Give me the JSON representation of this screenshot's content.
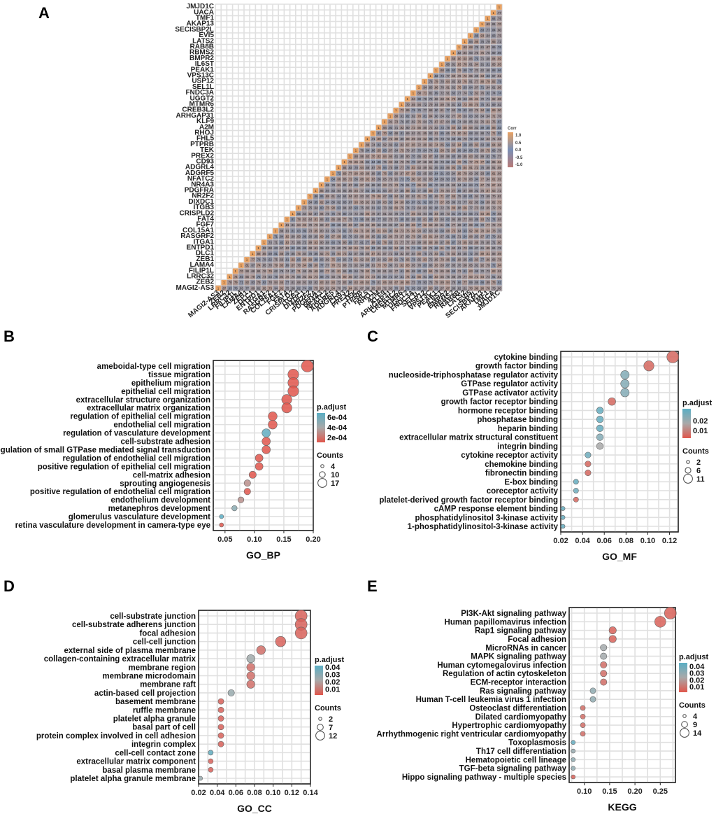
{
  "chart_data": [
    {
      "panel": "A",
      "type": "heatmap",
      "genes": [
        "MAGI2-AS3",
        "ZEB2",
        "LRRC32",
        "FILIP1L",
        "LAMA4",
        "ZEB1",
        "DLC1",
        "ENTPD1",
        "ITGA1",
        "RASGRF2",
        "COL15A1",
        "FGF7",
        "FAT4",
        "CRISPLD2",
        "ITGB3",
        "DIXDC1",
        "NR2F2",
        "PDGFRA",
        "NR4A3",
        "NFATC2",
        "ADGRF5",
        "ADGRL4",
        "CD93",
        "PREX2",
        "TEK",
        "PTPRB",
        "FHL5",
        "RHOJ",
        "A2M",
        "KLF9",
        "ARHGAP31",
        "CREB3L2",
        "MTMR6",
        "UGGT2",
        "FNDC3A",
        "SEL1L",
        "USP12",
        "VPS13C",
        "PEAK1",
        "IL6ST",
        "BMPR2",
        "RBMS2",
        "RAB8B",
        "LATS2",
        "EVI5",
        "SECISBP2L",
        "AKAP13",
        "TMF1",
        "UACA",
        "JMJD1C"
      ],
      "legend_title": "Corr",
      "legend_ticks": [
        "1.0",
        "0.5",
        "0.0",
        "-0.5",
        "-1.0"
      ]
    },
    {
      "panel": "B",
      "type": "scatter",
      "xlabel": "GO_BP",
      "xlim": [
        0.03,
        0.2
      ],
      "xticks": [
        "0.05",
        "0.10",
        "0.15",
        "0.20"
      ],
      "xtick_values": [
        0.05,
        0.1,
        0.15,
        0.2
      ],
      "terms": [
        "ameboidal-type cell migration",
        "tissue migration",
        "epithelium migration",
        "epithelial cell migration",
        "extracellular structure organization",
        "extracellular matrix organization",
        "regulation of epithelial cell migration",
        "endothelial cell migration",
        "regulation of vasculature development",
        "cell-substrate adhesion",
        "regulation of small GTPase mediated signal transduction",
        "regulation of endothelial cell migration",
        "positive regulation of epithelial cell migration",
        "cell-matrix adhesion",
        "sprouting angiogenesis",
        "positive regulation of endothelial cell migration",
        "endothelium development",
        "metanephros development",
        "glomerulus vasculature development",
        "retina vasculature development in camera-type eye"
      ],
      "x": [
        0.19,
        0.166,
        0.166,
        0.166,
        0.155,
        0.155,
        0.131,
        0.131,
        0.12,
        0.12,
        0.12,
        0.108,
        0.108,
        0.097,
        0.088,
        0.088,
        0.077,
        0.066,
        0.044,
        0.044
      ],
      "counts": [
        17,
        15,
        15,
        15,
        14,
        14,
        12,
        12,
        11,
        11,
        11,
        10,
        10,
        9,
        8,
        8,
        7,
        6,
        4,
        4
      ],
      "padj": [
        0.0001,
        0.0001,
        0.0001,
        0.0001,
        0.0001,
        0.0001,
        0.0001,
        0.0001,
        0.00065,
        0.0001,
        0.0001,
        0.0001,
        0.0001,
        0.0001,
        0.0003,
        0.0001,
        0.0003,
        0.0005,
        0.00068,
        0.0001
      ],
      "color_range": [
        0.0001,
        0.00068
      ],
      "color_title": "p.adjust",
      "color_ticks": [
        "6e-04",
        "4e-04",
        "2e-04"
      ],
      "color_tick_values": [
        0.0006,
        0.0004,
        0.0002
      ],
      "size_title": "Counts",
      "size_ticks": [
        "4",
        "10",
        "17"
      ],
      "size_tick_values": [
        4,
        10,
        17
      ]
    },
    {
      "panel": "C",
      "type": "scatter",
      "xlabel": "GO_MF",
      "xlim": [
        0.02,
        0.128
      ],
      "xticks": [
        "0.02",
        "0.04",
        "0.06",
        "0.08",
        "0.10",
        "0.12"
      ],
      "xtick_values": [
        0.02,
        0.04,
        0.06,
        0.08,
        0.1,
        0.12
      ],
      "terms": [
        "cytokine binding",
        "growth factor binding",
        "nucleoside-triphosphatase regulator activity",
        "GTPase regulator activity",
        "GTPase activator activity",
        "growth factor receptor binding",
        "hormone receptor binding",
        "phosphatase binding",
        "heparin binding",
        "extracellular matrix structural constituent",
        "integrin binding",
        "cytokine receptor activity",
        "chemokine binding",
        "fibronectin binding",
        "E-box binding",
        "coreceptor activity",
        "platelet-derived growth factor receptor binding",
        "cAMP response element binding",
        "phosphatidylinositol 3-kinase activity",
        "1-phosphatidylinositol-3-kinase activity"
      ],
      "x": [
        0.123,
        0.101,
        0.079,
        0.079,
        0.079,
        0.067,
        0.056,
        0.056,
        0.056,
        0.056,
        0.056,
        0.045,
        0.045,
        0.045,
        0.034,
        0.034,
        0.034,
        0.022,
        0.022,
        0.022
      ],
      "counts": [
        11,
        9,
        7,
        7,
        7,
        6,
        5,
        5,
        5,
        5,
        5,
        4,
        4,
        4,
        3,
        3,
        3,
        2,
        2,
        2
      ],
      "padj": [
        0.005,
        0.005,
        0.024,
        0.024,
        0.024,
        0.005,
        0.03,
        0.03,
        0.03,
        0.024,
        0.017,
        0.028,
        0.005,
        0.005,
        0.03,
        0.028,
        0.005,
        0.03,
        0.03,
        0.03
      ],
      "color_range": [
        0.002,
        0.032
      ],
      "color_title": "p.adjust",
      "color_ticks": [
        "0.02",
        "0.01"
      ],
      "color_tick_values": [
        0.02,
        0.01
      ],
      "size_title": "Counts",
      "size_ticks": [
        "2",
        "6",
        "11"
      ],
      "size_tick_values": [
        2,
        6,
        11
      ]
    },
    {
      "panel": "D",
      "type": "scatter",
      "xlabel": "GO_CC",
      "xlim": [
        0.02,
        0.14
      ],
      "xticks": [
        "0.02",
        "0.04",
        "0.06",
        "0.08",
        "0.10",
        "0.12",
        "0.14"
      ],
      "xtick_values": [
        0.02,
        0.04,
        0.06,
        0.08,
        0.1,
        0.12,
        0.14
      ],
      "terms": [
        "cell-substrate junction",
        "cell-substrate adherens junction",
        "focal adhesion",
        "cell-cell junction",
        "external side of plasma membrane",
        "collagen-containing extracellular matrix",
        "membrane region",
        "membrane microdomain",
        "membrane raft",
        "actin-based cell projection",
        "basement membrane",
        "ruffle membrane",
        "platelet alpha granule",
        "basal part of cell",
        "protein complex involved in cell adhesion",
        "integrin complex",
        "cell-cell contact zone",
        "extracellular matrix component",
        "basal plasma membrane",
        "platelet alpha granule membrane"
      ],
      "x": [
        0.13,
        0.13,
        0.13,
        0.108,
        0.087,
        0.076,
        0.076,
        0.076,
        0.076,
        0.055,
        0.044,
        0.044,
        0.044,
        0.044,
        0.044,
        0.044,
        0.033,
        0.033,
        0.033,
        0.022
      ],
      "counts": [
        12,
        12,
        12,
        10,
        8,
        7,
        7,
        7,
        7,
        5,
        4,
        4,
        4,
        4,
        4,
        4,
        3,
        3,
        3,
        2
      ],
      "padj": [
        0.005,
        0.005,
        0.005,
        0.005,
        0.008,
        0.024,
        0.008,
        0.008,
        0.008,
        0.026,
        0.005,
        0.005,
        0.005,
        0.005,
        0.005,
        0.005,
        0.04,
        0.005,
        0.005,
        0.026
      ],
      "color_range": [
        0.002,
        0.042
      ],
      "color_title": "p.adjust",
      "color_ticks": [
        "0.04",
        "0.03",
        "0.02",
        "0.01"
      ],
      "color_tick_values": [
        0.04,
        0.03,
        0.02,
        0.01
      ],
      "size_title": "Counts",
      "size_ticks": [
        "2",
        "7",
        "12"
      ],
      "size_tick_values": [
        2,
        7,
        12
      ]
    },
    {
      "panel": "E",
      "type": "scatter",
      "xlabel": "KEGG",
      "xlim": [
        0.07,
        0.28
      ],
      "xticks": [
        "0.10",
        "0.15",
        "0.20",
        "0.25"
      ],
      "xtick_values": [
        0.1,
        0.15,
        0.2,
        0.25
      ],
      "terms": [
        "PI3K-Akt signaling pathway",
        "Human papillomavirus infection",
        "Rap1 signaling pathway",
        "Focal adhesion",
        "MicroRNAs in cancer",
        "MAPK signaling pathway",
        "Human cytomegalovirus infection",
        "Regulation of actin cytoskeleton",
        "ECM-receptor interaction",
        "Ras signaling pathway",
        "Human T-cell leukemia virus 1 infection",
        "Osteoclast differentiation",
        "Dilated cardiomyopathy",
        "Hypertrophic cardiomyopathy",
        "Arrhythmogenic right ventricular cardiomyopathy",
        "Toxoplasmosis",
        "Th17 cell differentiation",
        "Hematopoietic cell lineage",
        "TGF-beta signaling pathway",
        "Hippo signaling pathway - multiple species"
      ],
      "x": [
        0.27,
        0.25,
        0.156,
        0.156,
        0.138,
        0.138,
        0.138,
        0.138,
        0.138,
        0.117,
        0.117,
        0.097,
        0.097,
        0.097,
        0.097,
        0.078,
        0.078,
        0.078,
        0.078,
        0.078
      ],
      "counts": [
        14,
        13,
        8,
        8,
        7,
        7,
        7,
        7,
        7,
        6,
        6,
        5,
        5,
        5,
        5,
        4,
        4,
        4,
        4,
        4
      ],
      "padj": [
        0.005,
        0.005,
        0.005,
        0.005,
        0.025,
        0.025,
        0.008,
        0.008,
        0.008,
        0.03,
        0.03,
        0.008,
        0.008,
        0.008,
        0.008,
        0.042,
        0.028,
        0.03,
        0.03,
        0.005
      ],
      "color_range": [
        0.002,
        0.045
      ],
      "color_title": "p.adjust",
      "color_ticks": [
        "0.04",
        "0.03",
        "0.02",
        "0.01"
      ],
      "color_tick_values": [
        0.04,
        0.03,
        0.02,
        0.01
      ],
      "size_title": "Counts",
      "size_ticks": [
        "4",
        "9",
        "14"
      ],
      "size_tick_values": [
        4,
        9,
        14
      ]
    }
  ],
  "panel_labels": [
    "A",
    "B",
    "C",
    "D",
    "E"
  ],
  "colors": {
    "high_p": "#5aaec4",
    "mid_p": "#a9a9a9",
    "low_p": "#e0564c",
    "corr_pos": "#e8a264",
    "corr_mid": "#7a8fb5",
    "corr_neg": "#b97a76",
    "grid": "#e0e0e0"
  }
}
